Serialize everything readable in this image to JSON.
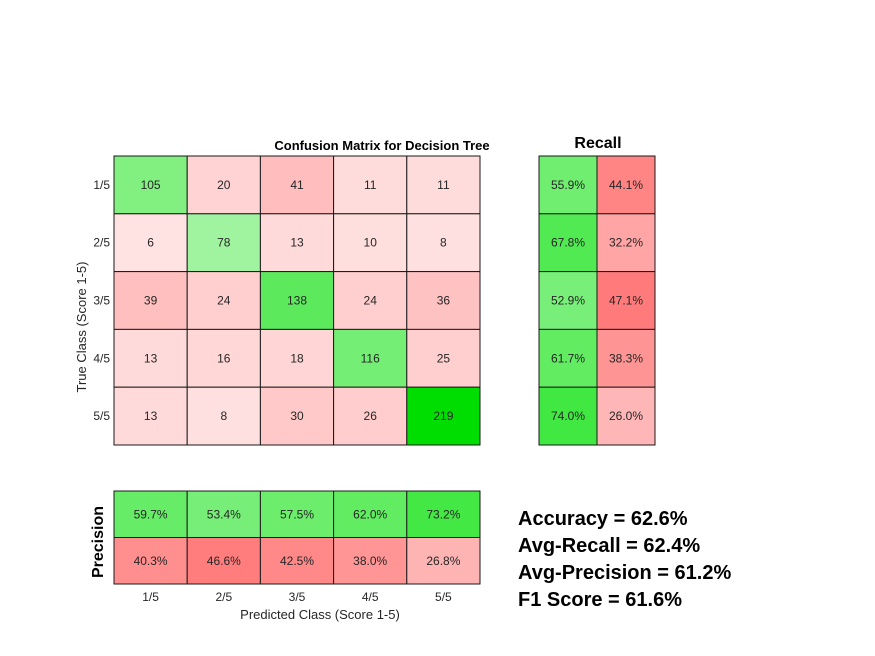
{
  "chart_data": {
    "type": "heatmap",
    "title": "Confusion Matrix for Decision Tree",
    "xlabel": "Predicted Class (Score 1-5)",
    "ylabel": "True Class (Score 1-5)",
    "row_labels": [
      "1/5",
      "2/5",
      "3/5",
      "4/5",
      "5/5"
    ],
    "col_labels": [
      "1/5",
      "2/5",
      "3/5",
      "4/5",
      "5/5"
    ],
    "matrix": [
      [
        105,
        20,
        41,
        11,
        11
      ],
      [
        6,
        78,
        13,
        10,
        8
      ],
      [
        39,
        24,
        138,
        24,
        36
      ],
      [
        13,
        16,
        18,
        116,
        25
      ],
      [
        13,
        8,
        30,
        26,
        219
      ]
    ],
    "recall": {
      "title": "Recall",
      "correct": [
        "55.9%",
        "67.8%",
        "52.9%",
        "61.7%",
        "74.0%"
      ],
      "incorrect": [
        "44.1%",
        "32.2%",
        "47.1%",
        "38.3%",
        "26.0%"
      ]
    },
    "precision": {
      "label": "Precision",
      "correct": [
        "59.7%",
        "53.4%",
        "57.5%",
        "62.0%",
        "73.2%"
      ],
      "incorrect": [
        "40.3%",
        "46.6%",
        "42.5%",
        "38.0%",
        "26.8%"
      ]
    }
  },
  "summary": {
    "accuracy": "Accuracy = 62.6%",
    "avg_recall": "Avg-Recall = 62.4%",
    "avg_precision": "Avg-Precision = 61.2%",
    "f1": "F1 Score = 61.6%"
  },
  "colors": {
    "green_full": "#00e000",
    "red_full": "#ff6666",
    "grid_line": "#1a1a1a"
  }
}
